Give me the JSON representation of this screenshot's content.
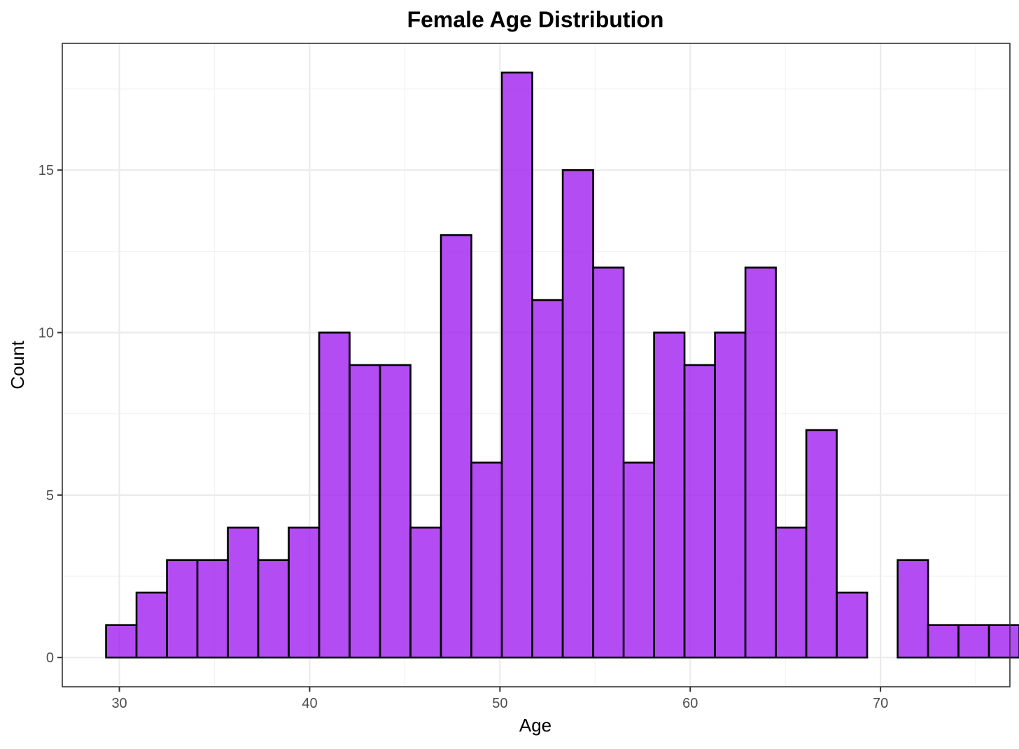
{
  "chart_data": {
    "type": "bar",
    "subtype": "histogram",
    "title": "Female Age Distribution",
    "xlabel": "Age",
    "ylabel": "Count",
    "bin_start": 29.3,
    "bin_width": 1.6,
    "values": [
      1,
      2,
      3,
      3,
      4,
      3,
      4,
      10,
      9,
      9,
      4,
      13,
      6,
      18,
      11,
      15,
      12,
      6,
      10,
      9,
      10,
      12,
      4,
      7,
      2,
      0,
      3,
      1,
      1,
      1
    ],
    "xlim": [
      27,
      76.8
    ],
    "ylim": [
      -0.9,
      18.9
    ],
    "x_ticks": [
      30,
      40,
      50,
      60,
      70
    ],
    "y_ticks": [
      0,
      5,
      10,
      15
    ],
    "fill_color": "#a020f0",
    "outline_color": "#000000",
    "grid": true,
    "theme": "bw"
  }
}
